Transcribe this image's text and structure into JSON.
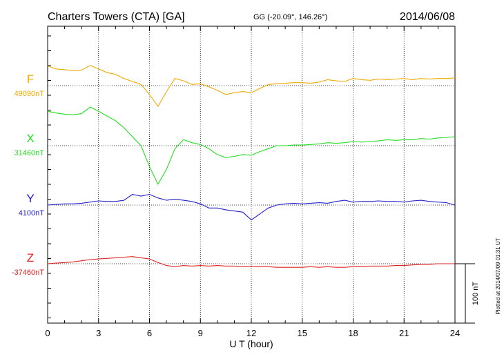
{
  "header": {
    "station": "Charters Towers (CTA)  [GA]",
    "coords": "GG (-20.09°, 146.26°)",
    "date": "2014/06/08"
  },
  "side_note": "Plotted at 2014/07/09 01:31  UT",
  "scale_label": "100 nT",
  "chart_data": {
    "type": "line",
    "xlabel": "U T (hour)",
    "xlim": [
      0,
      24
    ],
    "xticks": [
      0,
      3,
      6,
      9,
      12,
      15,
      18,
      21,
      24
    ],
    "x": [
      0,
      0.5,
      1,
      1.5,
      2,
      2.5,
      3,
      3.5,
      4,
      4.5,
      5,
      5.5,
      6,
      6.5,
      7,
      7.5,
      8,
      8.5,
      9,
      9.5,
      10,
      10.5,
      11,
      11.5,
      12,
      12.5,
      13,
      13.5,
      14,
      14.5,
      15,
      15.5,
      16,
      16.5,
      17,
      17.5,
      18,
      18.5,
      19,
      19.5,
      20,
      20.5,
      21,
      21.5,
      22,
      22.5,
      23,
      23.5,
      24
    ],
    "scale_nT": 100,
    "series": [
      {
        "name": "F",
        "baseline_label": "49090nT",
        "color": "#f0a800",
        "values": [
          33,
          28,
          27,
          25,
          26,
          34,
          28,
          22,
          19,
          12,
          7,
          2,
          -15,
          -35,
          -10,
          12,
          8,
          2,
          3,
          -2,
          -8,
          -15,
          -12,
          -10,
          -12,
          -5,
          2,
          3,
          4,
          5,
          5,
          4,
          6,
          10,
          8,
          7,
          12,
          10,
          9,
          11,
          10,
          11,
          12,
          10,
          12,
          11,
          12,
          12,
          13
        ]
      },
      {
        "name": "X",
        "baseline_label": "31460nT",
        "color": "#22dd22",
        "values": [
          58,
          55,
          53,
          52,
          54,
          65,
          58,
          50,
          42,
          30,
          15,
          0,
          -35,
          -65,
          -40,
          -5,
          10,
          5,
          2,
          -5,
          -15,
          -20,
          -18,
          -15,
          -16,
          -10,
          -5,
          0,
          0,
          1,
          1,
          2,
          3,
          5,
          4,
          5,
          7,
          6,
          7,
          8,
          10,
          9,
          10,
          10,
          12,
          11,
          13,
          14,
          15
        ]
      },
      {
        "name": "Y",
        "baseline_label": "4100nT",
        "color": "#2020cc",
        "values": [
          0,
          1,
          2,
          2,
          3,
          5,
          7,
          6,
          6,
          8,
          18,
          15,
          18,
          12,
          8,
          10,
          8,
          6,
          2,
          -5,
          -5,
          -8,
          -10,
          -12,
          -25,
          -15,
          -5,
          0,
          2,
          3,
          2,
          3,
          4,
          3,
          6,
          8,
          5,
          6,
          6,
          7,
          6,
          6,
          5,
          7,
          8,
          6,
          5,
          4,
          0
        ]
      },
      {
        "name": "Z",
        "baseline_label": "-37460nT",
        "color": "#dd2222",
        "values": [
          0,
          1,
          2,
          3,
          5,
          7,
          8,
          9,
          10,
          11,
          12,
          10,
          8,
          2,
          -3,
          -5,
          -3,
          -4,
          -3,
          -4,
          -3,
          -4,
          -4,
          -5,
          -4,
          -5,
          -5,
          -6,
          -6,
          -6,
          -6,
          -5,
          -6,
          -5,
          -6,
          -6,
          -5,
          -5,
          -4,
          -4,
          -4,
          -3,
          -3,
          -2,
          -1,
          -1,
          0,
          0,
          0
        ]
      }
    ]
  }
}
